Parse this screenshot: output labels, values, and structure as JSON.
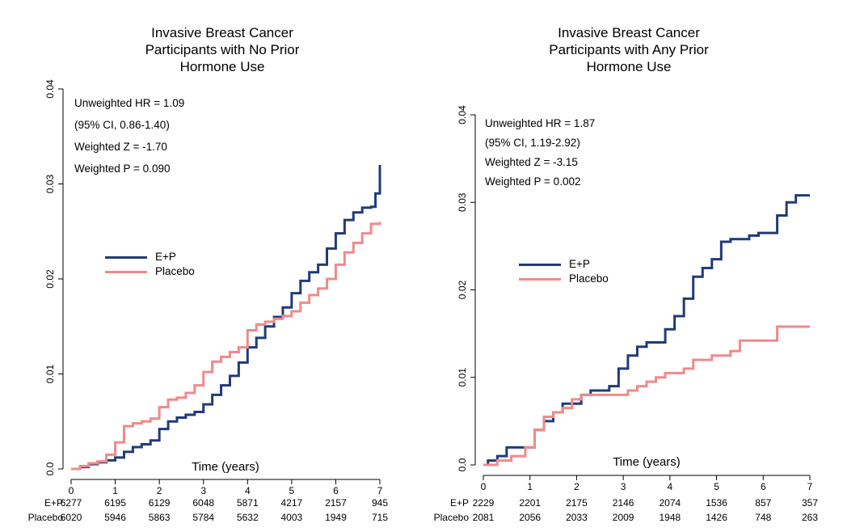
{
  "chart_data": [
    {
      "type": "line",
      "title": "Invasive Breast Cancer\nParticipants with No Prior\nHormone Use",
      "xlabel": "Time (years)",
      "ylabel": "",
      "xlim": [
        0,
        7
      ],
      "ylim": [
        0,
        0.04
      ],
      "xticks": [
        "0",
        "1",
        "2",
        "3",
        "4",
        "5",
        "6",
        "7"
      ],
      "yticks": [
        "0.0",
        "0.01",
        "0.02",
        "0.03",
        "0.04"
      ],
      "stats": [
        "Unweighted HR = 1.09",
        "(95% CI, 0.86-1.40)",
        "Weighted Z = -1.70",
        "Weighted P = 0.090"
      ],
      "legend": [
        "E+P",
        "Placebo"
      ],
      "series": [
        {
          "name": "E+P",
          "color": "#1f3b7a",
          "x": [
            0,
            0.2,
            0.4,
            0.6,
            0.8,
            1.0,
            1.2,
            1.4,
            1.6,
            1.8,
            2.0,
            2.2,
            2.4,
            2.6,
            2.8,
            3.0,
            3.2,
            3.4,
            3.6,
            3.8,
            4.0,
            4.2,
            4.4,
            4.6,
            4.8,
            5.0,
            5.2,
            5.4,
            5.6,
            5.8,
            6.0,
            6.2,
            6.4,
            6.6,
            6.8,
            6.9,
            7.0
          ],
          "y": [
            0,
            0.0002,
            0.0005,
            0.0007,
            0.0009,
            0.0012,
            0.0018,
            0.0023,
            0.0026,
            0.003,
            0.0042,
            0.005,
            0.0054,
            0.0057,
            0.006,
            0.0068,
            0.0078,
            0.0088,
            0.0098,
            0.0112,
            0.0128,
            0.0138,
            0.015,
            0.016,
            0.017,
            0.0185,
            0.0198,
            0.0207,
            0.0215,
            0.0232,
            0.0248,
            0.0262,
            0.027,
            0.0275,
            0.0276,
            0.029,
            0.032
          ]
        },
        {
          "name": "Placebo",
          "color": "#f08a8a",
          "x": [
            0,
            0.2,
            0.4,
            0.6,
            0.8,
            1.0,
            1.2,
            1.4,
            1.6,
            1.8,
            2.0,
            2.2,
            2.4,
            2.6,
            2.8,
            3.0,
            3.2,
            3.4,
            3.6,
            3.8,
            4.0,
            4.2,
            4.4,
            4.6,
            4.8,
            5.0,
            5.2,
            5.4,
            5.6,
            5.8,
            6.0,
            6.2,
            6.4,
            6.6,
            6.8,
            7.0
          ],
          "y": [
            0,
            0.0003,
            0.0006,
            0.0008,
            0.0015,
            0.0028,
            0.0045,
            0.0048,
            0.005,
            0.0053,
            0.0065,
            0.0073,
            0.0075,
            0.008,
            0.0088,
            0.0102,
            0.0113,
            0.0118,
            0.0123,
            0.0128,
            0.0146,
            0.0152,
            0.0155,
            0.0158,
            0.0161,
            0.0166,
            0.0175,
            0.0183,
            0.019,
            0.02,
            0.0215,
            0.0228,
            0.0238,
            0.0248,
            0.0258,
            0.026
          ]
        }
      ],
      "at_risk": {
        "times": [
          "0",
          "1",
          "2",
          "3",
          "4",
          "5",
          "6",
          "7"
        ],
        "rows": [
          {
            "label": "E+P",
            "values": [
              "6277",
              "6195",
              "6129",
              "6048",
              "5871",
              "4217",
              "2157",
              "945"
            ]
          },
          {
            "label": "Placebo",
            "values": [
              "6020",
              "5946",
              "5863",
              "5784",
              "5632",
              "4003",
              "1949",
              "715"
            ]
          }
        ]
      }
    },
    {
      "type": "line",
      "title": "Invasive Breast Cancer\nParticipants with Any Prior\nHormone Use",
      "xlabel": "Time (years)",
      "ylabel": "",
      "xlim": [
        0,
        7
      ],
      "ylim": [
        0,
        0.04
      ],
      "xticks": [
        "0",
        "1",
        "2",
        "3",
        "4",
        "5",
        "6",
        "7"
      ],
      "yticks": [
        "0.0",
        "0.01",
        "0.02",
        "0.03",
        "0.04"
      ],
      "stats": [
        "Unweighted HR = 1.87",
        "(95% CI, 1.19-2.92)",
        "Weighted Z = -3.15",
        "Weighted P = 0.002"
      ],
      "legend": [
        "E+P",
        "Placebo"
      ],
      "series": [
        {
          "name": "E+P",
          "color": "#1f3b7a",
          "x": [
            0,
            0.1,
            0.3,
            0.5,
            0.7,
            0.9,
            1.1,
            1.3,
            1.5,
            1.7,
            1.9,
            2.1,
            2.3,
            2.5,
            2.7,
            2.9,
            3.1,
            3.3,
            3.5,
            3.7,
            3.9,
            4.1,
            4.3,
            4.5,
            4.7,
            4.9,
            5.1,
            5.3,
            5.5,
            5.7,
            5.9,
            6.1,
            6.3,
            6.5,
            6.7,
            7.0
          ],
          "y": [
            0,
            0.0005,
            0.001,
            0.002,
            0.002,
            0.002,
            0.004,
            0.005,
            0.006,
            0.007,
            0.007,
            0.008,
            0.0085,
            0.0085,
            0.009,
            0.011,
            0.0125,
            0.0135,
            0.014,
            0.014,
            0.0155,
            0.017,
            0.019,
            0.0215,
            0.0225,
            0.0235,
            0.0255,
            0.0258,
            0.0258,
            0.0262,
            0.0265,
            0.0265,
            0.0285,
            0.03,
            0.0308,
            0.0308
          ]
        },
        {
          "name": "Placebo",
          "color": "#f08a8a",
          "x": [
            0,
            0.3,
            0.6,
            0.9,
            1.1,
            1.3,
            1.5,
            1.7,
            1.9,
            2.1,
            2.3,
            2.5,
            2.7,
            2.9,
            3.1,
            3.3,
            3.5,
            3.7,
            3.9,
            4.1,
            4.3,
            4.5,
            4.7,
            4.9,
            5.1,
            5.3,
            5.5,
            5.7,
            5.9,
            6.1,
            6.3,
            6.5,
            7.0
          ],
          "y": [
            0,
            0.0005,
            0.001,
            0.002,
            0.004,
            0.0055,
            0.006,
            0.0065,
            0.0075,
            0.008,
            0.008,
            0.008,
            0.008,
            0.008,
            0.0085,
            0.009,
            0.0095,
            0.01,
            0.0105,
            0.0105,
            0.011,
            0.012,
            0.012,
            0.0125,
            0.0125,
            0.013,
            0.0142,
            0.0142,
            0.0142,
            0.0142,
            0.0158,
            0.0158,
            0.0158
          ]
        }
      ],
      "at_risk": {
        "times": [
          "0",
          "1",
          "2",
          "3",
          "4",
          "5",
          "6",
          "7"
        ],
        "rows": [
          {
            "label": "E+P",
            "values": [
              "2229",
              "2201",
              "2175",
              "2146",
              "2074",
              "1536",
              "857",
              "357"
            ]
          },
          {
            "label": "Placebo",
            "values": [
              "2081",
              "2056",
              "2033",
              "2009",
              "1948",
              "1426",
              "748",
              "263"
            ]
          }
        ]
      }
    }
  ]
}
